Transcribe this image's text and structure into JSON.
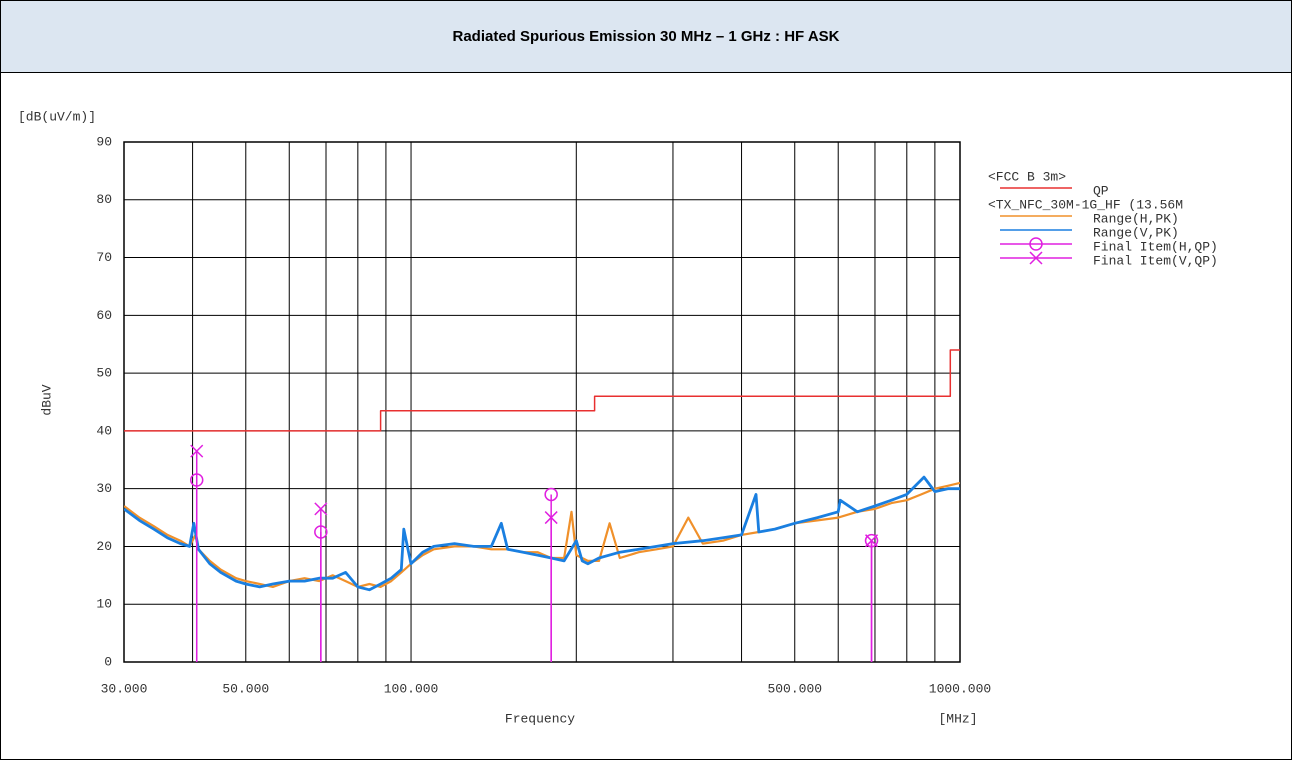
{
  "chart_data": {
    "type": "line",
    "title": "Radiated Spurious Emission 30 MHz – 1 GHz : HF ASK",
    "unit_label": "[dB(uV/m)]",
    "y_label": "dBuV",
    "x_label": "Frequency",
    "x_unit_label": "[MHz]",
    "x_scale": "log",
    "grid": true,
    "legend_position": "right",
    "legend_groups": [
      "<FCC B   3m>",
      "<TX_NFC_30M-1G_HF (13.56M"
    ],
    "xlim": [
      30,
      1000
    ],
    "ylim": [
      0,
      90
    ],
    "xticks": [
      {
        "value": 30,
        "label": "30.000"
      },
      40,
      {
        "value": 50,
        "label": "50.000"
      },
      60,
      70,
      80,
      90,
      {
        "value": 100,
        "label": "100.000"
      },
      200,
      300,
      400,
      {
        "value": 500,
        "label": "500.000"
      },
      600,
      700,
      800,
      900,
      {
        "value": 1000,
        "label": "1000.000"
      }
    ],
    "yticks": [
      0,
      10,
      20,
      30,
      40,
      50,
      60,
      70,
      80,
      90
    ],
    "series": [
      {
        "name": "QP",
        "group": 0,
        "color": "#e83030",
        "style": "line",
        "width": 1.5,
        "x": [
          30,
          88,
          88,
          216,
          216,
          960,
          960,
          1000
        ],
        "values": [
          40,
          40,
          43.5,
          43.5,
          46,
          46,
          54,
          54
        ]
      },
      {
        "name": "Range(H,PK)",
        "group": 1,
        "color": "#f0902a",
        "style": "line",
        "width": 2.2,
        "x": [
          30,
          32,
          34,
          36,
          38,
          39.5,
          40.5,
          41,
          43,
          45,
          48,
          50,
          53,
          56,
          60,
          64,
          68,
          72,
          76,
          80,
          84,
          88,
          92,
          96,
          100,
          105,
          110,
          120,
          130,
          140,
          150,
          160,
          170,
          180,
          190,
          196,
          200,
          210,
          220,
          230,
          240,
          260,
          280,
          300,
          320,
          340,
          370,
          400,
          430,
          460,
          500,
          550,
          600,
          650,
          700,
          750,
          800,
          850,
          900,
          950,
          1000
        ],
        "values": [
          27,
          25,
          23.5,
          22,
          21,
          20,
          22,
          19.5,
          17.5,
          16,
          14.5,
          14,
          13.5,
          13,
          14,
          14.5,
          14,
          15,
          14,
          13,
          13.5,
          13,
          14,
          15.5,
          17,
          18.5,
          19.5,
          20,
          20,
          19.5,
          19.5,
          19,
          19,
          18,
          18,
          26,
          18.5,
          17.5,
          17.5,
          24,
          18,
          19,
          19.5,
          20,
          25,
          20.5,
          21,
          22,
          22.5,
          23,
          24,
          24.5,
          25,
          26,
          26.5,
          27.5,
          28,
          29,
          30,
          30.5,
          31
        ]
      },
      {
        "name": "Range(V,PK)",
        "group": 1,
        "color": "#1a7fe0",
        "style": "line",
        "width": 2.8,
        "x": [
          30,
          32,
          34,
          36,
          38,
          39.5,
          40.2,
          41,
          43,
          45,
          48,
          50,
          53,
          56,
          60,
          64,
          68,
          72,
          76,
          80,
          84,
          88,
          92,
          96,
          97,
          100,
          105,
          110,
          120,
          130,
          140,
          146,
          150,
          160,
          170,
          180,
          190,
          200,
          205,
          210,
          220,
          240,
          260,
          280,
          300,
          340,
          370,
          400,
          425,
          430,
          460,
          500,
          550,
          600,
          605,
          650,
          700,
          750,
          800,
          860,
          900,
          950,
          1000
        ],
        "values": [
          26.5,
          24.5,
          23,
          21.5,
          20.5,
          20,
          24,
          19.5,
          17,
          15.5,
          14,
          13.5,
          13,
          13.5,
          14,
          14,
          14.5,
          14.5,
          15.5,
          13,
          12.5,
          13.5,
          14.5,
          16,
          23,
          17,
          19,
          20,
          20.5,
          20,
          20,
          24,
          19.5,
          19,
          18.5,
          18,
          17.5,
          21,
          17.5,
          17,
          18,
          19,
          19.5,
          20,
          20.5,
          21,
          21.5,
          22,
          29,
          22.5,
          23,
          24,
          25,
          26,
          28,
          26,
          27,
          28,
          29,
          32,
          29.5,
          30,
          30
        ]
      },
      {
        "name": "Final Item(H,QP)",
        "group": 1,
        "color": "#e020e0",
        "style": "marker-circle",
        "x": [
          40.7,
          68.5,
          180,
          690
        ],
        "values": [
          31.5,
          22.5,
          29,
          21
        ]
      },
      {
        "name": "Final Item(V,QP)",
        "group": 1,
        "color": "#e020e0",
        "style": "marker-cross",
        "x": [
          40.7,
          68.5,
          180,
          690
        ],
        "values": [
          36.5,
          26.5,
          25,
          21
        ]
      }
    ]
  }
}
